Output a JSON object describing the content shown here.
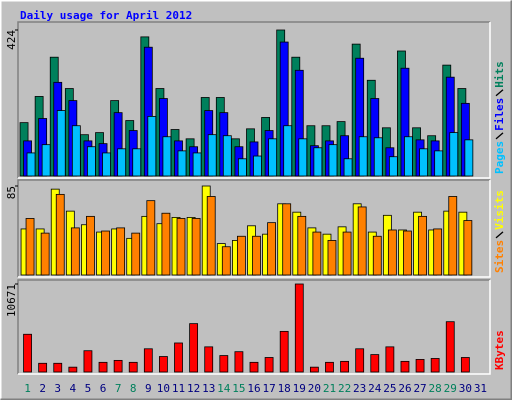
{
  "title": "Daily usage for April 2012",
  "chart_data": [
    {
      "type": "bar",
      "ylim": [
        0,
        424
      ],
      "yticks": [
        424
      ],
      "series": [
        {
          "name": "Hits",
          "color": "#00805c",
          "values": [
            155,
            231,
            345,
            254,
            120,
            126,
            219,
            161,
            404,
            254,
            135,
            108,
            228,
            228,
            108,
            137,
            170,
            424,
            345,
            146,
            146,
            158,
            383,
            278,
            140,
            363,
            140,
            117,
            322,
            254,
            null
          ]
        },
        {
          "name": "Files",
          "color": "#0000ff",
          "values": [
            102,
            167,
            272,
            219,
            102,
            94,
            184,
            132,
            374,
            225,
            102,
            85,
            190,
            184,
            85,
            99,
            132,
            389,
            307,
            88,
            102,
            117,
            342,
            225,
            82,
            313,
            105,
            102,
            287,
            211,
            null
          ]
        },
        {
          "name": "Pages",
          "color": "#00c0ff",
          "values": [
            67,
            91,
            190,
            146,
            85,
            67,
            79,
            79,
            173,
            114,
            73,
            67,
            120,
            117,
            50,
            58,
            108,
            146,
            108,
            82,
            91,
            50,
            114,
            111,
            56,
            114,
            79,
            73,
            126,
            105,
            null
          ]
        }
      ]
    },
    {
      "type": "bar",
      "ylim": [
        0,
        85
      ],
      "yticks": [
        85
      ],
      "series": [
        {
          "name": "Visits",
          "color": "#ffff00",
          "values": [
            44,
            44,
            82,
            61,
            48,
            41,
            44,
            35,
            56,
            49,
            55,
            55,
            85,
            30,
            33,
            47,
            39,
            68,
            60,
            45,
            39,
            46,
            68,
            41,
            57,
            43,
            60,
            43,
            61,
            60,
            null
          ]
        },
        {
          "name": "Sites",
          "color": "#ff8000",
          "values": [
            54,
            40,
            77,
            45,
            56,
            42,
            45,
            40,
            71,
            59,
            54,
            54,
            75,
            27,
            37,
            37,
            50,
            68,
            56,
            41,
            33,
            41,
            65,
            37,
            43,
            42,
            56,
            44,
            75,
            52,
            null
          ]
        }
      ]
    },
    {
      "type": "bar",
      "ylim": [
        0,
        10671
      ],
      "yticks": [
        10671
      ],
      "series": [
        {
          "name": "KBytes",
          "color": "#ff0000",
          "values": [
            4575,
            1056,
            1056,
            587,
            2581,
            1173,
            1408,
            1173,
            2815,
            1877,
            3519,
            5865,
            3050,
            1994,
            2463,
            1173,
            1760,
            4927,
            10671,
            587,
            1173,
            1290,
            2815,
            2111,
            3050,
            1290,
            1525,
            1642,
            6100,
            1760,
            null
          ]
        }
      ],
      "categories": [
        "1",
        "2",
        "3",
        "4",
        "5",
        "6",
        "7",
        "8",
        "9",
        "10",
        "11",
        "12",
        "13",
        "14",
        "15",
        "16",
        "17",
        "18",
        "19",
        "20",
        "21",
        "22",
        "23",
        "24",
        "25",
        "26",
        "27",
        "28",
        "29",
        "30",
        "31"
      ],
      "category_colors": [
        "#00805c",
        "#000080",
        "#000080",
        "#000080",
        "#000080",
        "#000080",
        "#00805c",
        "#00805c",
        "#000080",
        "#000080",
        "#000080",
        "#000080",
        "#000080",
        "#00805c",
        "#00805c",
        "#000080",
        "#000080",
        "#000080",
        "#000080",
        "#000080",
        "#00805c",
        "#00805c",
        "#000080",
        "#000080",
        "#000080",
        "#000080",
        "#000080",
        "#00805c",
        "#00805c",
        "#000080",
        "#000080"
      ]
    }
  ]
}
